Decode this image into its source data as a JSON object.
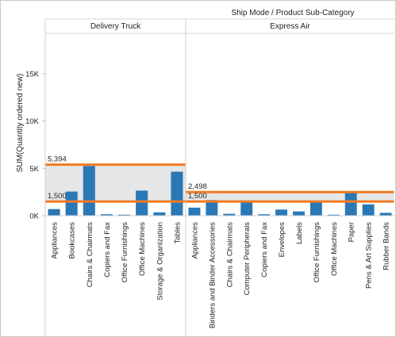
{
  "chart_data": {
    "type": "bar",
    "title": "Ship Mode / Product Sub-Category",
    "ylabel": "SUM(Quantity ordered new)",
    "ylim": [
      0,
      19500
    ],
    "yticks": [
      {
        "value": 0,
        "label": "0K"
      },
      {
        "value": 5000,
        "label": "5K"
      },
      {
        "value": 10000,
        "label": "10K"
      },
      {
        "value": 15000,
        "label": "15K"
      }
    ],
    "grid": false,
    "bar_color": "#2a78b6",
    "reference_line_color": "#f47a20",
    "band_color": "#e6e6e6",
    "panels": [
      {
        "name": "Delivery Truck",
        "categories": [
          "Appliances",
          "Bookcases",
          "Chairs & Chairmats",
          "Copiers and Fax",
          "Office Furnishings",
          "Office Machines",
          "Storage & Organization",
          "Tables"
        ],
        "values": [
          700,
          2550,
          5250,
          150,
          100,
          2650,
          350,
          4650
        ],
        "reference_lines": [
          {
            "value": 5394,
            "label": "5,394"
          },
          {
            "value": 1500,
            "label": "1,500"
          }
        ]
      },
      {
        "name": "Express Air",
        "categories": [
          "Appliances",
          "Binders and Binder Accessories",
          "Chairs & Chairmats",
          "Computer Peripherals",
          "Copiers and Fax",
          "Envelopes",
          "Labels",
          "Office Furnishings",
          "Office Machines",
          "Paper",
          "Pens & Art Supplies",
          "Rubber Bands"
        ],
        "values": [
          850,
          1650,
          200,
          1400,
          150,
          650,
          450,
          1400,
          100,
          2450,
          1200,
          300
        ],
        "reference_lines": [
          {
            "value": 2498,
            "label": "2,498"
          },
          {
            "value": 1500,
            "label": "1,500"
          }
        ]
      }
    ]
  }
}
